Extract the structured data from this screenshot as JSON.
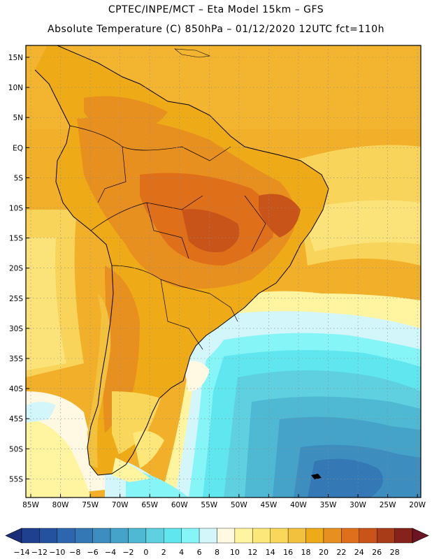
{
  "header": {
    "line1": "CPTEC/INPE/MCT –  Eta Model 15km – GFS",
    "line2": "Absolute Temperature (C) 850hPa – 01/12/2020 12UTC fct=110h"
  },
  "map": {
    "variable": "Absolute Temperature (C) 850hPa",
    "lat_labels": [
      "15N",
      "10N",
      "5N",
      "EQ",
      "5S",
      "10S",
      "15S",
      "20S",
      "25S",
      "30S",
      "35S",
      "40S",
      "45S",
      "50S",
      "55S"
    ],
    "lon_labels": [
      "85W",
      "80W",
      "75W",
      "70W",
      "65W",
      "60W",
      "55W",
      "50W",
      "45W",
      "40W",
      "35W",
      "30W",
      "25W",
      "20W"
    ]
  },
  "colorbar": {
    "labels": [
      "-14",
      "-12",
      "-10",
      "-8",
      "-6",
      "-4",
      "-2",
      "0",
      "2",
      "4",
      "6",
      "8",
      "10",
      "12",
      "14",
      "16",
      "18",
      "20",
      "22",
      "24",
      "26",
      "28"
    ],
    "colors": [
      "#1f3f8f",
      "#25529f",
      "#2d66ad",
      "#3479b5",
      "#3d8dbf",
      "#45a3c9",
      "#4fb9d3",
      "#5fd0e0",
      "#5fe6ee",
      "#86f5f7",
      "#d2f6fa",
      "#fff8e3",
      "#fff5a0",
      "#fbe77a",
      "#f8d75a",
      "#f2c23f",
      "#eeaa17",
      "#e8901f",
      "#e06f1a",
      "#c9541a",
      "#a83b18",
      "#85231a"
    ],
    "low_end_color": "#1a2e7a",
    "high_end_color": "#6b1423"
  }
}
